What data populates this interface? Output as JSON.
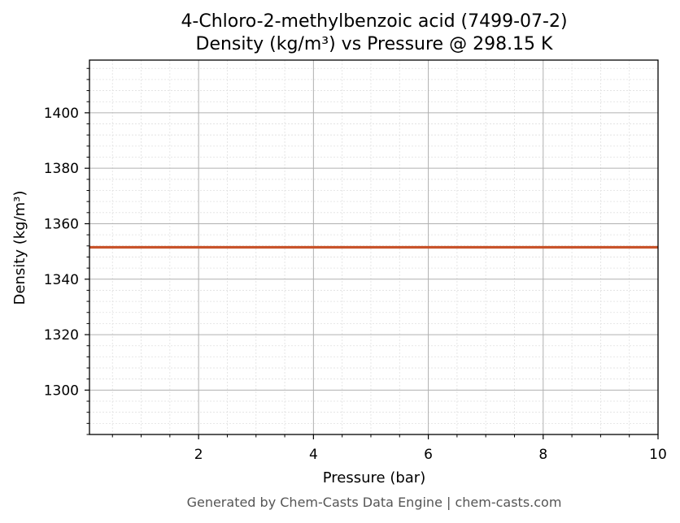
{
  "chart_data": {
    "type": "line",
    "title": "4-Chloro-2-methylbenzoic acid (7499-07-2)",
    "subtitle": "Density (kg/m³) vs Pressure @ 298.15 K",
    "xlabel": "Pressure (bar)",
    "ylabel": "Density (kg/m³)",
    "xlim": [
      0.1,
      10
    ],
    "ylim": [
      1284,
      1419
    ],
    "x_ticks": [
      2,
      4,
      6,
      8,
      10
    ],
    "y_ticks": [
      1300,
      1320,
      1340,
      1360,
      1380,
      1400
    ],
    "grid": true,
    "minor_grid": true,
    "legend": "none",
    "series": [
      {
        "color": "#c8532a",
        "x": [
          0.1,
          10
        ],
        "y": [
          1351.5,
          1351.5
        ]
      }
    ]
  },
  "footer": "Generated by Chem-Casts Data Engine | chem-casts.com",
  "colors": {
    "major_grid": "#b0b0b0",
    "minor_grid": "#e0e0e0",
    "axes": "#000000"
  }
}
